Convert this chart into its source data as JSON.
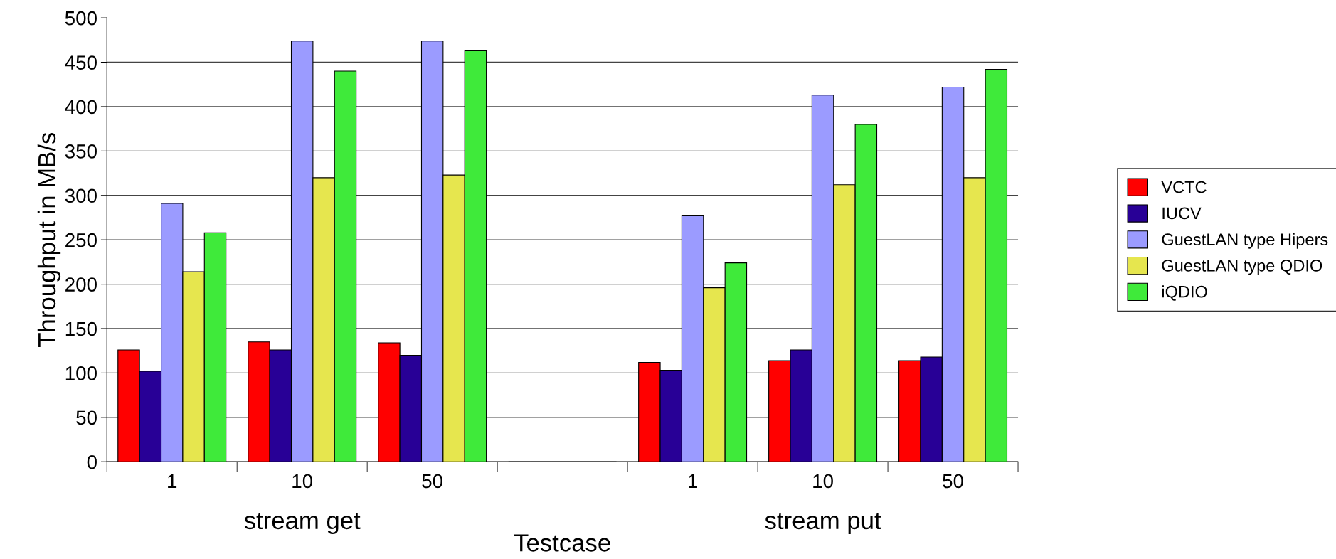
{
  "chart_data": {
    "type": "bar",
    "ylabel": "Throughput in MB/s",
    "xlabel": "Testcase",
    "categories": [
      "1",
      "10",
      "50",
      null,
      "1",
      "10",
      "50"
    ],
    "series": [
      {
        "name": "VCTC",
        "color": "#ff0000",
        "values": [
          126,
          135,
          134,
          0,
          112,
          114,
          114
        ]
      },
      {
        "name": "IUCV",
        "color": "#280096",
        "values": [
          102,
          126,
          120,
          0,
          103,
          126,
          118
        ]
      },
      {
        "name": "GuestLAN type Hipers",
        "color": "#9b9bff",
        "values": [
          291,
          474,
          474,
          0,
          277,
          413,
          422
        ]
      },
      {
        "name": "GuestLAN type QDIO",
        "color": "#e6e64e",
        "values": [
          214,
          320,
          323,
          0,
          196,
          312,
          320
        ]
      },
      {
        "name": "iQDIO",
        "color": "#3fea3a",
        "values": [
          258,
          440,
          463,
          0,
          224,
          380,
          442
        ]
      }
    ],
    "ylim": [
      0,
      500
    ],
    "yticks": [
      0,
      50,
      100,
      150,
      200,
      250,
      300,
      350,
      400,
      450,
      500
    ],
    "grid": "y",
    "legend": "right",
    "annotations": [
      "stream get",
      "stream put"
    ]
  }
}
